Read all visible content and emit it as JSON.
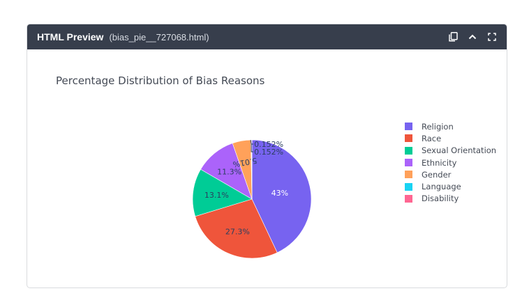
{
  "window": {
    "title": "HTML Preview",
    "filename": "(bias_pie__727068.html)",
    "icons": [
      "copy-icon",
      "chevron-up-icon",
      "fullscreen-icon"
    ]
  },
  "chart_data": {
    "type": "pie",
    "title": "Percentage Distribution of Bias Reasons",
    "categories": [
      "Religion",
      "Race",
      "Sexual Orientation",
      "Ethnicity",
      "Gender",
      "Language",
      "Disability"
    ],
    "values": [
      43,
      27.3,
      13.1,
      11.3,
      5.01,
      0.152,
      0.152
    ],
    "labels": [
      "43%",
      "27.3%",
      "13.1%",
      "11.3%",
      "5.01%",
      "0.152%",
      "0.152%"
    ],
    "colors": [
      "#7763f0",
      "#ef553b",
      "#00cc96",
      "#ab63fa",
      "#ffa15a",
      "#19d3f3",
      "#ff6692"
    ],
    "legend_position": "right",
    "direction": "clockwise",
    "start_angle": 90
  }
}
